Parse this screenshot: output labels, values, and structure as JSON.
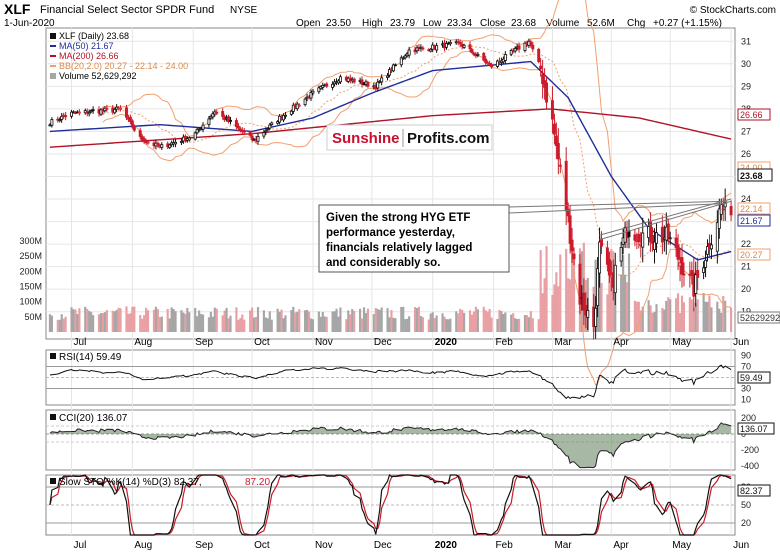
{
  "header": {
    "symbol": "XLF",
    "name": "Financial Select Sector SPDR Fund",
    "exchange": "NYSE",
    "date": "1-Jun-2020",
    "open_label": "Open",
    "open": "23.50",
    "high_label": "High",
    "high": "23.79",
    "low_label": "Low",
    "low": "23.34",
    "close_label": "Close",
    "close": "23.68",
    "volume_label": "Volume",
    "volume": "52.6M",
    "chg_label": "Chg",
    "chg": "+0.27 (+1.15%)",
    "watermark": "© StockCharts.com"
  },
  "legend": {
    "xlf": "XLF (Daily) 23.68",
    "ma50": "MA(50) 21.67",
    "ma200": "MA(200) 26.66",
    "bb": "BB(20,2.0) 20.27 - 22.14 - 24.00",
    "volume": "Volume 52,629,292"
  },
  "logo": {
    "part1": "Sunshine",
    "part2": "Profits.com"
  },
  "annotation": {
    "lines": [
      "Given the strong HYG ETF",
      "performance yesterday,",
      "financials relatively lagged",
      "and considerably so."
    ]
  },
  "price_badges": {
    "bb_upper": "24.00",
    "close": "23.68",
    "bb_mid": "22.14",
    "ma50": "21.67",
    "bb_lower": "20.27",
    "ma200": "26.66",
    "volume": "52629292"
  },
  "x_axis": [
    "Jul",
    "Aug",
    "Sep",
    "Oct",
    "Nov",
    "Dec",
    "2020",
    "Feb",
    "Mar",
    "Apr",
    "May",
    "Jun"
  ],
  "rsi": {
    "label": "RSI(14) 59.49",
    "value_badge": "59.49",
    "ticks": [
      "90",
      "70",
      "50",
      "30",
      "10"
    ]
  },
  "cci": {
    "label": "CCI(20) 136.07",
    "value_badge": "136.07",
    "ticks": [
      "200",
      "0",
      "-200",
      "-400"
    ]
  },
  "sto": {
    "label_k": "Slow STO %K(14) %D(3) 82.37,",
    "label_d": "87.20",
    "value_badge": "82.37",
    "ticks": [
      "80",
      "50",
      "20"
    ]
  },
  "colors": {
    "up": "#111111",
    "down": "#cc1b2a",
    "ma50": "#1f2e9a",
    "ma200": "#b11226",
    "bb": "#f0a070",
    "vol_up": "#a6a6a6",
    "vol_down": "#e8a0a4",
    "trendline": "#777777",
    "osc_fill_pos": "#5e7f5a",
    "osc_fill_neg": "#8c6b6b"
  },
  "chart_data": {
    "type": "candlestick",
    "title": "XLF Financial Select Sector SPDR Fund NYSE",
    "price_axis": {
      "ticks": [
        31,
        30,
        29,
        28,
        27,
        26,
        25,
        24,
        23,
        22,
        21,
        20,
        19
      ],
      "range": [
        18.1,
        31.5
      ]
    },
    "volume_axis": {
      "ticks": [
        "300M",
        "250M",
        "200M",
        "150M",
        "100M",
        "50M"
      ],
      "range_millions": [
        0,
        330
      ]
    },
    "months": [
      "Jul",
      "Aug",
      "Sep",
      "Oct",
      "Nov",
      "Dec",
      "2020",
      "Feb",
      "Mar",
      "Apr",
      "May",
      "Jun"
    ],
    "close_keypoints": [
      {
        "date": "2019-06-20",
        "close": 27.4
      },
      {
        "date": "2019-07-01",
        "close": 27.8
      },
      {
        "date": "2019-07-26",
        "close": 28.0
      },
      {
        "date": "2019-08-05",
        "close": 26.7
      },
      {
        "date": "2019-08-15",
        "close": 26.3
      },
      {
        "date": "2019-09-01",
        "close": 26.8
      },
      {
        "date": "2019-09-12",
        "close": 27.9
      },
      {
        "date": "2019-10-02",
        "close": 26.6
      },
      {
        "date": "2019-10-15",
        "close": 27.6
      },
      {
        "date": "2019-11-01",
        "close": 28.7
      },
      {
        "date": "2019-11-15",
        "close": 29.4
      },
      {
        "date": "2019-12-03",
        "close": 29.0
      },
      {
        "date": "2019-12-20",
        "close": 30.6
      },
      {
        "date": "2020-01-15",
        "close": 30.9
      },
      {
        "date": "2020-01-31",
        "close": 29.9
      },
      {
        "date": "2020-02-19",
        "close": 31.0
      },
      {
        "date": "2020-02-25",
        "close": 29.8
      },
      {
        "date": "2020-03-02",
        "close": 27.4
      },
      {
        "date": "2020-03-09",
        "close": 23.6
      },
      {
        "date": "2020-03-16",
        "close": 19.6
      },
      {
        "date": "2020-03-23",
        "close": 18.4
      },
      {
        "date": "2020-03-26",
        "close": 21.8
      },
      {
        "date": "2020-04-01",
        "close": 20.2
      },
      {
        "date": "2020-04-09",
        "close": 22.7
      },
      {
        "date": "2020-04-17",
        "close": 22.4
      },
      {
        "date": "2020-04-30",
        "close": 22.3
      },
      {
        "date": "2020-05-13",
        "close": 20.0
      },
      {
        "date": "2020-05-20",
        "close": 21.8
      },
      {
        "date": "2020-05-27",
        "close": 23.7
      },
      {
        "date": "2020-05-29",
        "close": 23.4
      },
      {
        "date": "2020-06-01",
        "close": 23.68
      }
    ],
    "ma50_keypoints": [
      {
        "date": "2019-06-20",
        "value": 27.0
      },
      {
        "date": "2019-08-15",
        "value": 27.3
      },
      {
        "date": "2019-10-01",
        "value": 27.0
      },
      {
        "date": "2019-11-01",
        "value": 27.6
      },
      {
        "date": "2019-12-01",
        "value": 28.7
      },
      {
        "date": "2020-01-01",
        "value": 29.7
      },
      {
        "date": "2020-02-20",
        "value": 30.1
      },
      {
        "date": "2020-03-10",
        "value": 28.5
      },
      {
        "date": "2020-04-01",
        "value": 25.0
      },
      {
        "date": "2020-04-20",
        "value": 22.7
      },
      {
        "date": "2020-05-15",
        "value": 21.3
      },
      {
        "date": "2020-06-01",
        "value": 21.67
      }
    ],
    "ma200_keypoints": [
      {
        "date": "2019-06-20",
        "value": 26.3
      },
      {
        "date": "2019-10-01",
        "value": 26.9
      },
      {
        "date": "2020-01-01",
        "value": 27.7
      },
      {
        "date": "2020-03-01",
        "value": 28.0
      },
      {
        "date": "2020-04-15",
        "value": 27.6
      },
      {
        "date": "2020-06-01",
        "value": 26.66
      }
    ],
    "bollinger_last": {
      "upper": 24.0,
      "middle": 22.14,
      "lower": 20.27
    },
    "volume_last": 52629292,
    "trendlines": [
      {
        "from": {
          "date": "2020-03-26",
          "price": 22.2
        },
        "to": {
          "date": "2020-06-01",
          "price": 23.9
        }
      },
      {
        "from": {
          "date": "2020-03-26",
          "price": 22.4
        },
        "to": {
          "date": "2020-06-01",
          "price": 24.0
        }
      }
    ],
    "annotation_text": "Given the strong HYG ETF performance yesterday, financials relatively lagged and considerably so.",
    "indicators": {
      "rsi14": {
        "last": 59.49,
        "ticks": [
          90,
          70,
          50,
          30,
          10
        ],
        "overbought": 70,
        "oversold": 30
      },
      "cci20": {
        "last": 136.07,
        "ticks": [
          200,
          0,
          -200,
          -400
        ]
      },
      "slow_sto": {
        "k_last": 82.37,
        "d_last": 87.2,
        "ticks": [
          80,
          50,
          20
        ]
      }
    }
  }
}
